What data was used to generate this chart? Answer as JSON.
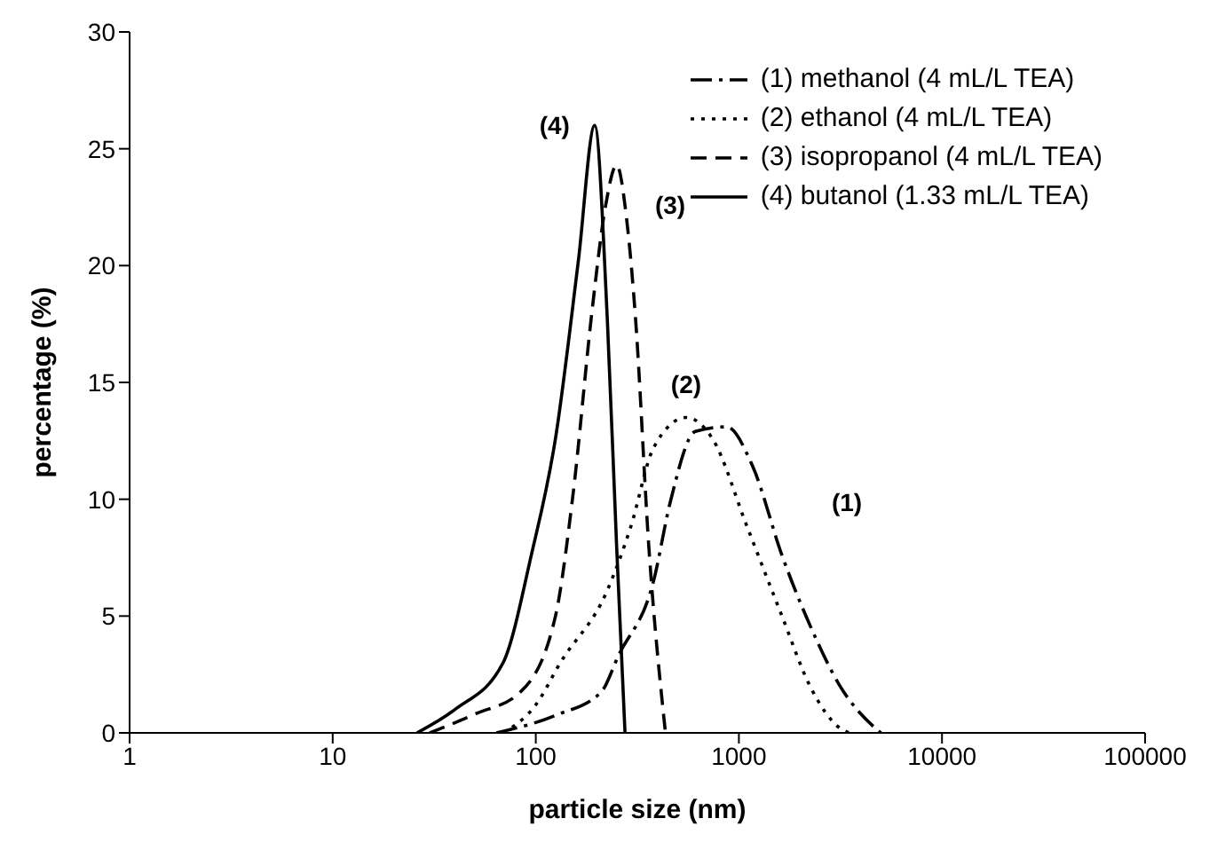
{
  "chart_data": {
    "type": "line",
    "xlabel": "particle size (nm)",
    "ylabel": "percentage (%)",
    "log": "x",
    "xlim": [
      1,
      100000
    ],
    "xticks": [
      1,
      10,
      100,
      1000,
      10000,
      100000
    ],
    "ylim": [
      0,
      30
    ],
    "yticks": [
      0,
      5,
      10,
      15,
      20,
      25,
      30
    ],
    "legend": "top right",
    "marker": "none",
    "series": [
      {
        "name": "(1) methanol (4 mL/L TEA)",
        "color": "#000000",
        "line_style": "dashdot",
        "x": [
          64,
          125,
          210,
          255,
          380,
          460,
          610,
          870,
          1170,
          1630,
          2240,
          3150,
          4700,
          5000
        ],
        "values": [
          0,
          0.75,
          1.75,
          3.3,
          6.5,
          9.9,
          12.9,
          13.1,
          11.4,
          7.6,
          4.6,
          2,
          0.2,
          0
        ]
      },
      {
        "name": "(2) ethanol (4 mL/L TEA)",
        "color": "#000000",
        "line_style": "dotted",
        "x": [
          69,
          100,
          132,
          225,
          293,
          380,
          550,
          740,
          1100,
          1630,
          2240,
          3150,
          3500
        ],
        "values": [
          0,
          1.2,
          3,
          6.1,
          8.8,
          12.2,
          13.5,
          12.6,
          8.8,
          5,
          2,
          0.2,
          0
        ]
      },
      {
        "name": "(3) isopropanol (4 mL/L TEA)",
        "color": "#000000",
        "line_style": "dashed",
        "x": [
          30,
          50,
          84,
          125,
          152,
          190,
          220,
          250,
          280,
          310,
          360,
          435
        ],
        "values": [
          0,
          0.8,
          1.75,
          5,
          10.1,
          18.2,
          22.5,
          24.3,
          22,
          17.7,
          8,
          0
        ]
      },
      {
        "name": "(4) butanol (1.33 mL/L TEA)",
        "color": "#000000",
        "line_style": "solid",
        "x": [
          26,
          40,
          69,
          95,
          125,
          162,
          195,
          225,
          250,
          275
        ],
        "values": [
          0,
          1,
          3,
          7.6,
          12.6,
          20.2,
          26,
          17.7,
          8,
          0
        ]
      }
    ],
    "annotations": [
      {
        "text": "(4)",
        "x": 195,
        "y": 26
      },
      {
        "text": "(3)",
        "x": 280,
        "y": 22
      },
      {
        "text": "(2)",
        "x": 550,
        "y": 13.5
      },
      {
        "text": "(1)",
        "x": 1630,
        "y": 7.6
      }
    ]
  }
}
